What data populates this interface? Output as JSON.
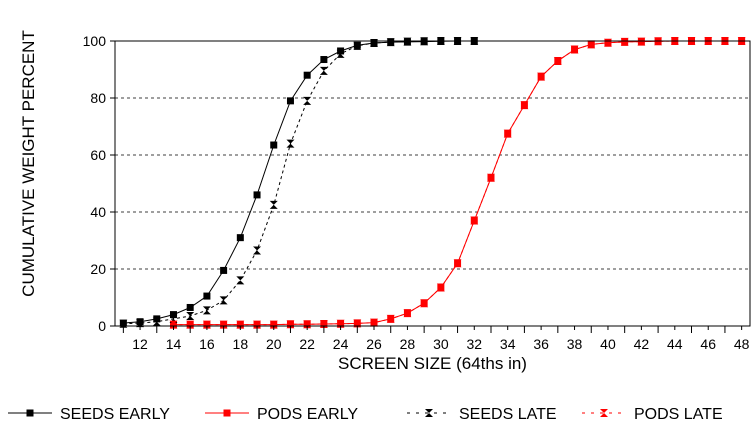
{
  "chart_data": {
    "type": "line",
    "title": "",
    "xlabel": "SCREEN SIZE (64ths in)",
    "ylabel": "CUMULATIVE WEIGHT PERCENT",
    "xlim": [
      10.5,
      48.5
    ],
    "ylim": [
      0,
      100
    ],
    "xticks": [
      12,
      14,
      16,
      18,
      20,
      22,
      24,
      26,
      28,
      30,
      32,
      34,
      36,
      38,
      40,
      42,
      44,
      46,
      48
    ],
    "yticks": [
      0,
      20,
      40,
      60,
      80,
      100
    ],
    "grid": "horizontal dashed",
    "legend_position": "bottom",
    "series": [
      {
        "name": "SEEDS EARLY",
        "color": "#000000",
        "line": "solid",
        "marker": "square",
        "x": [
          11,
          12,
          13,
          14,
          15,
          16,
          17,
          18,
          19,
          20,
          21,
          22,
          23,
          24,
          25,
          26,
          27,
          28,
          29,
          30,
          31,
          32
        ],
        "y": [
          1,
          1.5,
          2.5,
          4,
          6.5,
          10.5,
          19.5,
          31,
          46,
          63.5,
          79,
          88,
          93.5,
          96.5,
          98.5,
          99.3,
          99.6,
          99.7,
          99.8,
          99.9,
          100,
          100
        ]
      },
      {
        "name": "PODS EARLY",
        "color": "#ff0000",
        "line": "solid",
        "marker": "square",
        "x": [
          14,
          15,
          16,
          17,
          18,
          19,
          20,
          21,
          22,
          23,
          24,
          25,
          26,
          27,
          28,
          29,
          30,
          31,
          32,
          33,
          34,
          35,
          36,
          37,
          38,
          39,
          40,
          41,
          42,
          43,
          44,
          45,
          46,
          47,
          48
        ],
        "y": [
          0.5,
          0.5,
          0.5,
          0.5,
          0.5,
          0.5,
          0.5,
          0.6,
          0.6,
          0.7,
          0.8,
          0.9,
          1.2,
          2.5,
          4.5,
          8,
          13.5,
          22,
          37,
          52,
          67.5,
          77.5,
          87.5,
          93,
          97,
          98.8,
          99.4,
          99.7,
          99.8,
          99.9,
          100,
          100,
          100,
          100,
          100
        ]
      },
      {
        "name": "SEEDS LATE",
        "color": "#000000",
        "line": "dashed",
        "marker": "hourglass",
        "x": [
          11,
          12,
          13,
          14,
          15,
          16,
          17,
          18,
          19,
          20,
          21,
          22,
          23,
          24,
          25,
          26,
          27,
          28,
          29,
          30,
          31,
          32
        ],
        "y": [
          0.8,
          1,
          1.5,
          2.5,
          3.5,
          5.5,
          9,
          16,
          26.5,
          42.5,
          64,
          79,
          89.5,
          95.5,
          98.3,
          99.3,
          99.6,
          99.8,
          99.9,
          100,
          100,
          100
        ]
      },
      {
        "name": "PODS LATE",
        "color": "#ff0000",
        "line": "dashed",
        "marker": "hourglass",
        "x": [
          14,
          15,
          16,
          17,
          18,
          19,
          20,
          21,
          22,
          23,
          24,
          25,
          26,
          27,
          28,
          29,
          30,
          31,
          32,
          33,
          34,
          35,
          36,
          37,
          38,
          39,
          40,
          41,
          42,
          43,
          44,
          45,
          46,
          47,
          48
        ],
        "y": [
          0.5,
          0.5,
          0.5,
          0.5,
          0.5,
          0.5,
          0.5,
          0.6,
          0.6,
          0.7,
          0.8,
          0.9,
          1.2,
          2.5,
          4.5,
          8,
          13.5,
          22,
          37,
          52,
          67.5,
          77.5,
          87.5,
          93,
          97,
          98.8,
          99.4,
          99.7,
          99.8,
          99.9,
          100,
          100,
          100,
          100,
          100
        ]
      }
    ]
  }
}
